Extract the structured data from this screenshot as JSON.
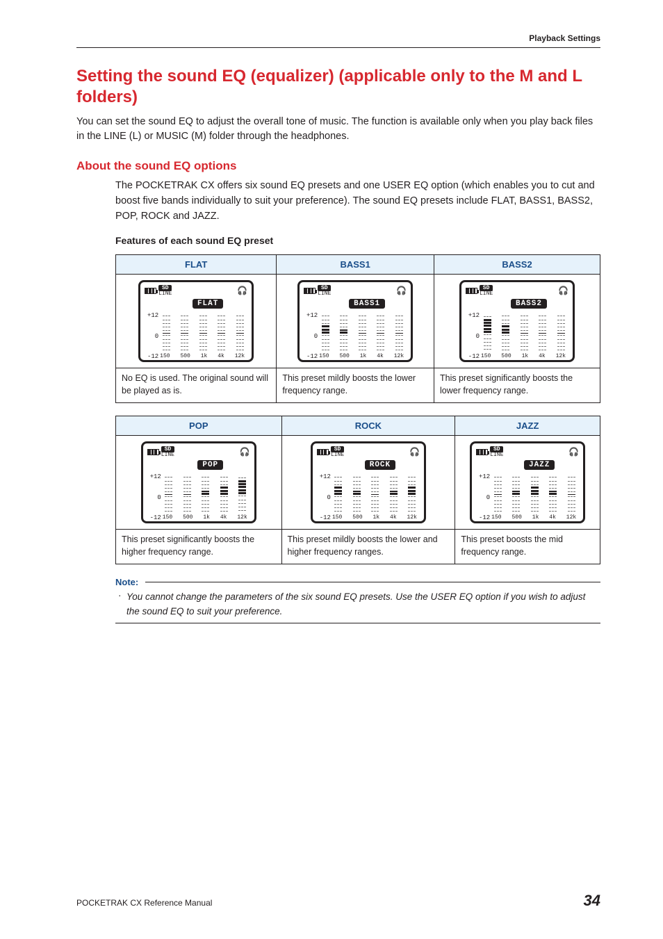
{
  "breadcrumb": "Playback Settings",
  "title": "Setting the sound EQ (equalizer) (applicable only to the M and L folders)",
  "intro": "You can set the sound EQ to adjust the overall tone of music. The function is available only when you play back files in the LINE (L) or MUSIC (M) folder through the headphones.",
  "subheading": "About the sound EQ options",
  "body": "The POCKETRAK CX offers six sound EQ presets and one USER EQ option (which enables you to cut and boost five bands individually to suit your preference). The sound EQ presets include FLAT, BASS1, BASS2, POP, ROCK and JAZZ.",
  "features_label": "Features of each sound EQ preset",
  "y_labels": [
    "+12",
    "0",
    "-12"
  ],
  "x_labels": [
    "150",
    "500",
    "1k",
    "4k",
    "12k"
  ],
  "lcd_line": "LINE",
  "lcd_sd": "SD",
  "note_head": "Note:",
  "note_text": "You cannot change the parameters of the six sound EQ presets. Use the USER EQ option if you wish to adjust the sound EQ to suit your preference.",
  "footer_left": "POCKETRAK CX   Reference Manual",
  "footer_page": "34",
  "tables": [
    {
      "cols": [
        {
          "head": "FLAT",
          "name": "FLAT",
          "bars": [
            0,
            0,
            0,
            0,
            0
          ],
          "desc": "No EQ is used. The original sound will be played as is."
        },
        {
          "head": "BASS1",
          "name": "BASS1",
          "bars": [
            2,
            1,
            0,
            0,
            0
          ],
          "desc": "This preset mildly boosts the lower frequency range."
        },
        {
          "head": "BASS2",
          "name": "BASS2",
          "bars": [
            4,
            2,
            0,
            0,
            0
          ],
          "desc": "This preset significantly boosts the lower frequency range."
        }
      ]
    },
    {
      "cols": [
        {
          "head": "POP",
          "name": "POP",
          "bars": [
            0,
            0,
            1,
            2,
            4
          ],
          "desc": "This preset significantly boosts the higher frequency range."
        },
        {
          "head": "ROCK",
          "name": "ROCK",
          "bars": [
            2,
            1,
            0,
            1,
            2
          ],
          "desc": "This preset mildly boosts the lower and higher frequency ranges."
        },
        {
          "head": "JAZZ",
          "name": "JAZZ",
          "bars": [
            0,
            1,
            2,
            1,
            0
          ],
          "desc": "This preset boosts the mid frequency range."
        }
      ]
    }
  ]
}
